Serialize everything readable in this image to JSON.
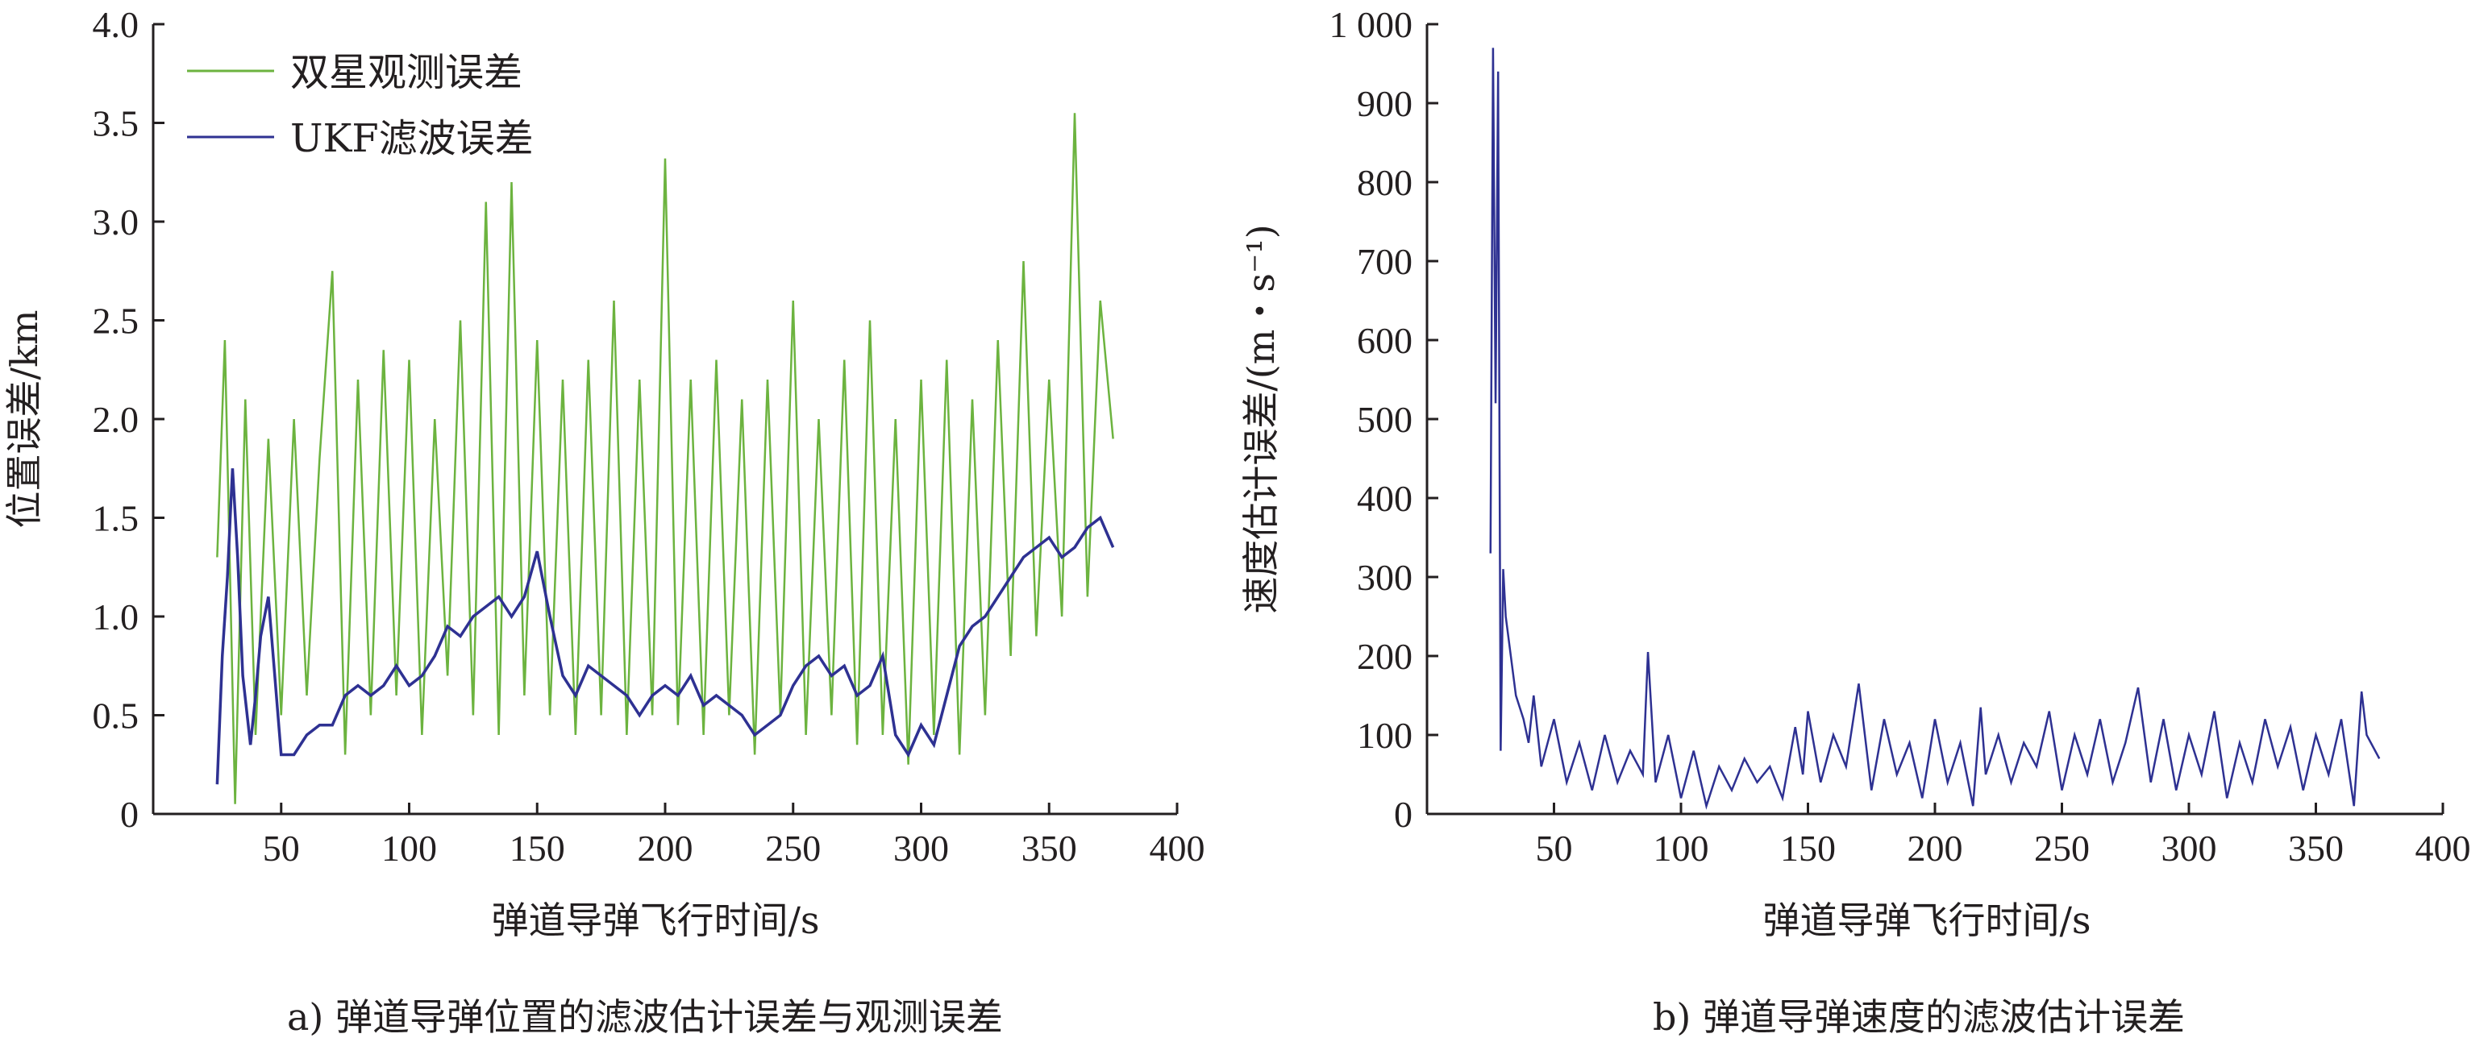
{
  "chart_data": [
    {
      "type": "line",
      "caption": "a) 弹道导弹位置的滤波估计误差与观测误差",
      "xlabel": "弹道导弹飞行时间/s",
      "ylabel": "位置误差/km",
      "xlim": [
        0,
        400
      ],
      "ylim": [
        0,
        4.0
      ],
      "x_ticks": [
        "50",
        "100",
        "150",
        "200",
        "250",
        "300",
        "350",
        "400"
      ],
      "y_ticks": [
        "0",
        "0.5",
        "1.0",
        "1.5",
        "2.0",
        "2.5",
        "3.0",
        "3.5",
        "4.0"
      ],
      "grid": false,
      "legend_position": "top-left",
      "series": [
        {
          "name": "双星观测误差",
          "color": "#6cb33f",
          "x": [
            25,
            28,
            32,
            36,
            40,
            45,
            50,
            55,
            60,
            65,
            70,
            75,
            80,
            85,
            90,
            95,
            100,
            105,
            110,
            115,
            120,
            125,
            130,
            135,
            140,
            145,
            150,
            155,
            160,
            165,
            170,
            175,
            180,
            185,
            190,
            195,
            200,
            205,
            210,
            215,
            220,
            225,
            230,
            235,
            240,
            245,
            250,
            255,
            260,
            265,
            270,
            275,
            280,
            285,
            290,
            295,
            300,
            305,
            310,
            315,
            320,
            325,
            330,
            335,
            340,
            345,
            350,
            355,
            360,
            365,
            370,
            375
          ],
          "values": [
            1.3,
            2.4,
            0.05,
            2.1,
            0.4,
            1.9,
            0.5,
            2.0,
            0.6,
            1.8,
            2.75,
            0.3,
            2.2,
            0.5,
            2.35,
            0.6,
            2.3,
            0.4,
            2.0,
            0.7,
            2.5,
            0.5,
            3.1,
            0.4,
            3.2,
            0.6,
            2.4,
            0.5,
            2.2,
            0.4,
            2.3,
            0.5,
            2.6,
            0.4,
            2.2,
            0.5,
            3.32,
            0.45,
            2.2,
            0.4,
            2.3,
            0.5,
            2.1,
            0.3,
            2.2,
            0.5,
            2.6,
            0.4,
            2.0,
            0.5,
            2.3,
            0.35,
            2.5,
            0.4,
            2.0,
            0.25,
            2.2,
            0.4,
            2.3,
            0.3,
            2.1,
            0.5,
            2.4,
            0.8,
            2.8,
            0.9,
            2.2,
            1.0,
            3.55,
            1.1,
            2.6,
            1.9
          ]
        },
        {
          "name": "UKF滤波误差",
          "color": "#2e3192",
          "x": [
            25,
            27,
            29,
            31,
            33,
            35,
            38,
            40,
            42,
            45,
            50,
            55,
            60,
            65,
            70,
            75,
            80,
            85,
            90,
            95,
            100,
            105,
            110,
            115,
            120,
            125,
            130,
            135,
            140,
            145,
            150,
            155,
            160,
            165,
            170,
            175,
            180,
            185,
            190,
            195,
            200,
            205,
            210,
            215,
            220,
            225,
            230,
            235,
            240,
            245,
            250,
            255,
            260,
            265,
            270,
            275,
            280,
            285,
            290,
            295,
            300,
            305,
            310,
            315,
            320,
            325,
            330,
            335,
            340,
            345,
            350,
            355,
            360,
            365,
            370,
            375
          ],
          "values": [
            0.15,
            0.8,
            1.2,
            1.75,
            1.3,
            0.7,
            0.35,
            0.6,
            0.9,
            1.1,
            0.3,
            0.3,
            0.4,
            0.45,
            0.45,
            0.6,
            0.65,
            0.6,
            0.65,
            0.75,
            0.65,
            0.7,
            0.8,
            0.95,
            0.9,
            1.0,
            1.05,
            1.1,
            1.0,
            1.1,
            1.33,
            1.0,
            0.7,
            0.6,
            0.75,
            0.7,
            0.65,
            0.6,
            0.5,
            0.6,
            0.65,
            0.6,
            0.7,
            0.55,
            0.6,
            0.55,
            0.5,
            0.4,
            0.45,
            0.5,
            0.65,
            0.75,
            0.8,
            0.7,
            0.75,
            0.6,
            0.65,
            0.8,
            0.4,
            0.3,
            0.45,
            0.35,
            0.6,
            0.85,
            0.95,
            1.0,
            1.1,
            1.2,
            1.3,
            1.35,
            1.4,
            1.3,
            1.35,
            1.45,
            1.5,
            1.35
          ]
        }
      ]
    },
    {
      "type": "line",
      "caption": "b) 弹道导弹速度的滤波估计误差",
      "xlabel": "弹道导弹飞行时间/s",
      "ylabel": "速度估计误差/(m・s⁻¹)",
      "xlim": [
        0,
        400
      ],
      "ylim": [
        0,
        1000
      ],
      "x_ticks": [
        "50",
        "100",
        "150",
        "200",
        "250",
        "300",
        "350",
        "400"
      ],
      "y_ticks": [
        "0",
        "100",
        "200",
        "300",
        "400",
        "500",
        "600",
        "700",
        "800",
        "900",
        "1 000"
      ],
      "grid": false,
      "series": [
        {
          "color": "#2e3192",
          "x": [
            25,
            26,
            27,
            28,
            29,
            30,
            31,
            33,
            35,
            38,
            40,
            42,
            45,
            50,
            55,
            60,
            65,
            70,
            75,
            80,
            85,
            87,
            90,
            95,
            100,
            105,
            110,
            115,
            120,
            125,
            130,
            135,
            140,
            145,
            148,
            150,
            155,
            160,
            165,
            170,
            175,
            180,
            185,
            190,
            195,
            200,
            205,
            210,
            215,
            218,
            220,
            225,
            230,
            235,
            240,
            245,
            250,
            255,
            260,
            265,
            270,
            275,
            280,
            285,
            290,
            295,
            300,
            305,
            310,
            315,
            320,
            325,
            330,
            335,
            340,
            345,
            350,
            355,
            360,
            365,
            368,
            370,
            375
          ],
          "values": [
            330,
            970,
            520,
            940,
            80,
            310,
            250,
            200,
            150,
            120,
            90,
            150,
            60,
            120,
            40,
            90,
            30,
            100,
            40,
            80,
            50,
            205,
            40,
            100,
            20,
            80,
            10,
            60,
            30,
            70,
            40,
            60,
            20,
            110,
            50,
            130,
            40,
            100,
            60,
            165,
            30,
            120,
            50,
            90,
            20,
            120,
            40,
            90,
            10,
            135,
            50,
            100,
            40,
            90,
            60,
            130,
            30,
            100,
            50,
            120,
            40,
            90,
            160,
            40,
            120,
            30,
            100,
            50,
            130,
            20,
            90,
            40,
            120,
            60,
            110,
            30,
            100,
            50,
            120,
            10,
            155,
            100,
            70
          ]
        }
      ]
    }
  ]
}
